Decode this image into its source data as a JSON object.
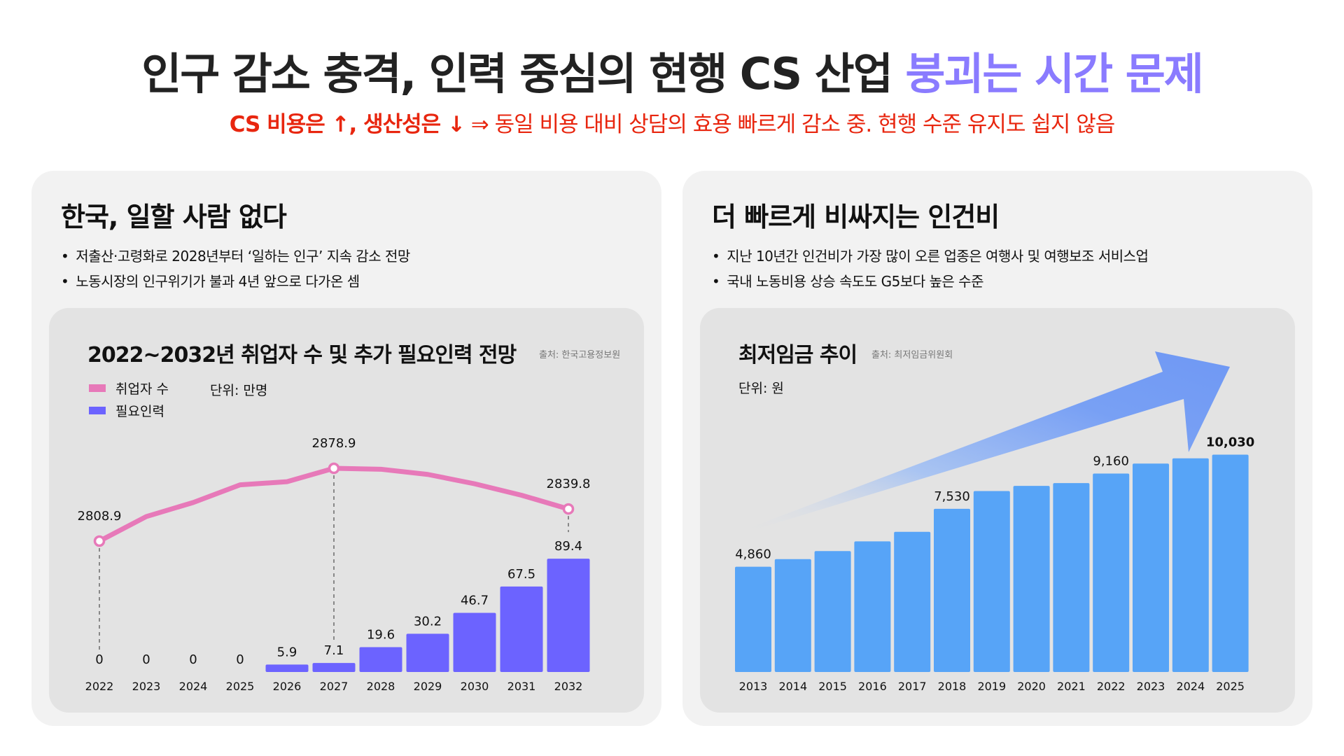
{
  "header": {
    "title_main": "인구 감소 충격, 인력 중심의 현행 CS 산업 ",
    "title_accent": "붕괴는 시간 문제",
    "subtitle_strong": "CS 비용은 ↑, 생산성은 ↓",
    "subtitle_rest": " ⇒ 동일 비용 대비 상담의 효용 빠르게 감소 중. 현행 수준 유지도 쉽지 않음",
    "colors": {
      "accent": "#8a7bff",
      "alert": "#e8260f"
    }
  },
  "left_panel": {
    "heading": "한국, 일할 사람 없다",
    "bullets": [
      "저출산·고령화로 2028년부터 ‘일하는 인구’ 지속 감소 전망",
      "노동시장의 인구위기가 불과 4년 앞으로 다가온 셈"
    ],
    "chart_title": "2022~2032년 취업자 수 및 추가 필요인력 전망",
    "source": "출처: 한국고용정보원",
    "unit": "단위: 만명"
  },
  "right_panel": {
    "heading": "더 빠르게 비싸지는 인건비",
    "bullets": [
      "지난 10년간 인건비가 가장 많이 오른 업종은 여행사 및 여행보조 서비스업",
      "국내 노동비용 상승 속도도 G5보다 높은 수준"
    ],
    "chart_title": "최저임금 추이",
    "source": "출처: 최저임금위원회",
    "unit": "단위: 원"
  },
  "chart_data": [
    {
      "type": "bar",
      "title": "2022~2032년 취업자 수 및 추가 필요인력 전망",
      "unit": "만명",
      "categories": [
        "2022",
        "2023",
        "2024",
        "2025",
        "2026",
        "2027",
        "2028",
        "2029",
        "2030",
        "2031",
        "2032"
      ],
      "legend": [
        {
          "name": "취업자 수",
          "color": "#e779b9",
          "kind": "line"
        },
        {
          "name": "필요인력",
          "color": "#6c63ff",
          "kind": "bar"
        }
      ],
      "series": [
        {
          "name": "취업자 수",
          "kind": "line",
          "color": "#e779b9",
          "values": [
            2808.9,
            2832.5,
            2846,
            2863,
            2866,
            2878.9,
            2878,
            2873,
            2864,
            2853,
            2839.8
          ],
          "labeled_points": [
            {
              "category": "2022",
              "label": "2808.9"
            },
            {
              "category": "2027",
              "label": "2878.9"
            },
            {
              "category": "2032",
              "label": "2839.8"
            }
          ]
        },
        {
          "name": "필요인력",
          "kind": "bar",
          "color": "#6c63ff",
          "values": [
            0,
            0,
            0,
            0,
            5.9,
            7.1,
            19.6,
            30.2,
            46.7,
            67.5,
            89.4
          ],
          "labels": [
            "0",
            "0",
            "0",
            "0",
            "5.9",
            "7.1",
            "19.6",
            "30.2",
            "46.7",
            "67.5",
            "89.4"
          ]
        }
      ],
      "line_ylim": [
        2790,
        2900
      ],
      "bar_ylim": [
        0,
        100
      ],
      "grid": false,
      "legend_position": "top-left"
    },
    {
      "type": "bar",
      "title": "최저임금 추이",
      "unit": "원",
      "categories": [
        "2013",
        "2014",
        "2015",
        "2016",
        "2017",
        "2018",
        "2019",
        "2020",
        "2021",
        "2022",
        "2023",
        "2024",
        "2025"
      ],
      "values": [
        4860,
        5210,
        5580,
        6030,
        6470,
        7530,
        8350,
        8590,
        8720,
        9160,
        9620,
        9860,
        10030
      ],
      "labels": [
        {
          "category": "2013",
          "label": "4,860",
          "bold": false
        },
        {
          "category": "2018",
          "label": "7,530",
          "bold": false
        },
        {
          "category": "2022",
          "label": "9,160",
          "bold": false
        },
        {
          "category": "2025",
          "label": "10,030",
          "bold": true
        }
      ],
      "color": "#57a4f7",
      "trend_arrow_color": "#6f98f4",
      "ylim": [
        0,
        10500
      ],
      "grid": false
    }
  ]
}
